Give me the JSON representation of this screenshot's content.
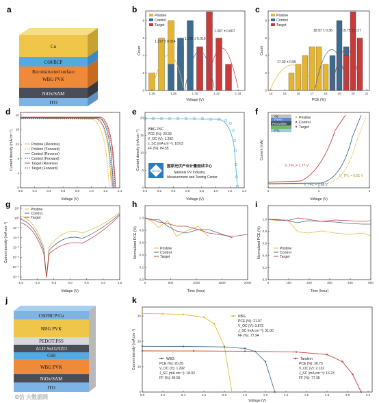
{
  "colors": {
    "pristine": "#E6B530",
    "control": "#3D6A8F",
    "target": "#C73B3B",
    "blue_curve": "#56B3DE",
    "ito": "#7EB3E6",
    "gold": "#F0C64A",
    "orange": "#F08A3B",
    "dark": "#4A4E58",
    "c60": "#56A9E0"
  },
  "panels": {
    "a": "a",
    "b": "b",
    "c": "c",
    "d": "d",
    "e": "e",
    "f": "f",
    "g": "g",
    "h": "h",
    "i": "i",
    "j": "j",
    "k": "k"
  },
  "panel_a": {
    "layers": [
      "Cu",
      "C60/BCP",
      "Reconstructed surface",
      "WBG PVK",
      "NiOx/SAM",
      "ITO"
    ]
  },
  "panel_j": {
    "layers": [
      "C60/BCP/Cu",
      "NBG PVK",
      "PEDOT:PSS",
      "ALD SnO2/IZO",
      "C60",
      "WBG PVK",
      "NiOx/SAM",
      "ITO"
    ],
    "watermark": "©仿 大数据网"
  },
  "legend_main": [
    "Pristine",
    "Control",
    "Target"
  ],
  "panel_b": {
    "xlabel": "Voltage (V)",
    "ylabel": "Count",
    "ticks_x": [
      "1.26",
      "1.28",
      "1.30",
      "1.32",
      "1.34"
    ],
    "ticks_y": [
      "0",
      "2",
      "4",
      "6",
      "8"
    ],
    "annotations": [
      "1.227 ± 0.014",
      "1.278 ± 0.010",
      "1.307 ± 0.007"
    ]
  },
  "panel_c": {
    "xlabel": "PCE (%)",
    "ylabel": "Count",
    "ticks_x": [
      "14",
      "15",
      "16",
      "17",
      "18",
      "19",
      "20",
      "21"
    ],
    "ticks_y": [
      "0",
      "2",
      "4",
      "6",
      "8"
    ],
    "annotations": [
      "17.32 ± 0.55",
      "18.97 ± 0.36",
      "19.75 ± 0.37"
    ]
  },
  "panel_d": {
    "xlabel": "Voltage (V)",
    "ylabel": "Current density (mA cm⁻²)",
    "ticks_x": [
      "0.0",
      "0.2",
      "0.4",
      "0.6",
      "0.8",
      "1.0",
      "1.2",
      "1.4"
    ],
    "ticks_y": [
      "0",
      "4",
      "8",
      "12",
      "16",
      "20"
    ],
    "legend": [
      "Pristine (Reverse)",
      "Pristine (Forward)",
      "Control (Reverse)",
      "Control (Forward)",
      "Target (Reverse)",
      "Target (Forward)"
    ]
  },
  "panel_e": {
    "xlabel": "Voltage (V)",
    "ylabel": "Current density (mA cm⁻²)",
    "ticks_x": [
      "0.0",
      "0.2",
      "0.4",
      "0.6",
      "0.8",
      "1.0",
      "1.2",
      "1.4"
    ],
    "ticks_y": [
      "0",
      "5",
      "10",
      "15",
      "20"
    ],
    "cert_lines": [
      "WBG PSC",
      "PCE (%): 20.39",
      "V_OC (V): 1.292",
      "J_SC (mA cm⁻²): 18.03",
      "FF (%): 84.55"
    ],
    "logo_text": "NPVM",
    "org_cn": "国家光伏产业计量测试中心",
    "org_en": "National PV Industry",
    "org_en2": "Measurement and Testing Center"
  },
  "panel_f": {
    "xlabel": "Voltage (V)",
    "ylabel": "Current (mA)",
    "ticks_x": [
      "0",
      "1",
      "2"
    ],
    "stack": [
      "Ag",
      "PTAA",
      "Perovskite",
      "PTL",
      "ITO"
    ],
    "annotations": [
      "V_TFL = 1.77 V",
      "V_TFL = 0.81 V",
      "V_TFL = 0.88 V"
    ]
  },
  "panel_g": {
    "xlabel": "Voltage (V)",
    "ylabel": "Current density (mA cm⁻²)",
    "ticks_x": [
      "-1.5",
      "-1.0",
      "-0.5",
      "0.0",
      "0.5",
      "1.0",
      "1.5"
    ],
    "ticks_y": [
      "10¹",
      "10⁰",
      "10⁻¹",
      "10⁻²",
      "10⁻³",
      "10⁻⁴",
      "10⁻⁵",
      "10⁻⁶"
    ]
  },
  "panel_h": {
    "xlabel": "Time (hour)",
    "ylabel": "Normalized PCE (%)",
    "ticks_x": [
      "0",
      "500",
      "1000",
      "1500",
      "2000"
    ],
    "ticks_y": [
      "0.0",
      "0.2",
      "0.4",
      "0.6",
      "0.8",
      "1.0"
    ]
  },
  "panel_i": {
    "xlabel": "Time (hour)",
    "ylabel": "Normalized PCE (%)",
    "ticks_x": [
      "0",
      "100",
      "200",
      "300",
      "400",
      "500"
    ],
    "ticks_y": [
      "0.0",
      "0.2",
      "0.4",
      "0.6",
      "0.8",
      "1.0"
    ]
  },
  "panel_k": {
    "xlabel": "Voltage (V)",
    "ylabel": "Current density (mA cm⁻²)",
    "ticks_x": [
      "0.0",
      "0.2",
      "0.4",
      "0.6",
      "0.8",
      "1.0",
      "1.2",
      "1.4",
      "1.6",
      "1.8",
      "2.0",
      "2.2"
    ],
    "ticks_y": [
      "0",
      "10",
      "20",
      "30"
    ],
    "nbg_label": "NBG",
    "nbg_lines": [
      "PCE (%): 21.07",
      "V_OC (V): 0.873",
      "J_SC (mA cm⁻²): 31.00",
      "FF (%): 77.94"
    ],
    "wbg_label": "WBG",
    "wbg_lines": [
      "PCE (%): 20.39",
      "V_OC (V): 1.292",
      "J_SC (mA cm⁻²): 18.03",
      "FF (%): 84.55"
    ],
    "tandem_label": "Tandem",
    "tandem_lines": [
      "PCE (%): 26.75",
      "V_OC (V): 2.132",
      "J_SC (mA cm⁻²): 16.23",
      "FF (%): 77.35"
    ]
  },
  "chart_data": [
    {
      "panel": "b",
      "type": "bar",
      "xlabel": "Voltage (V)",
      "ylabel": "Count",
      "series": [
        {
          "name": "Pristine",
          "x": [
            1.25,
            1.26,
            1.27,
            1.28
          ],
          "values": [
            2,
            6,
            8,
            5
          ]
        },
        {
          "name": "Control",
          "x": [
            1.27,
            1.28,
            1.29,
            1.3
          ],
          "values": [
            3,
            6,
            8,
            4
          ]
        },
        {
          "name": "Target",
          "x": [
            1.3,
            1.31,
            1.32,
            1.33
          ],
          "values": [
            5,
            9,
            6,
            3
          ]
        }
      ]
    },
    {
      "panel": "c",
      "type": "bar",
      "xlabel": "PCE (%)",
      "ylabel": "Count",
      "series": [
        {
          "name": "Pristine",
          "x": [
            15.5,
            16,
            16.5,
            17,
            17.5,
            18
          ],
          "values": [
            2,
            3,
            4,
            5,
            5,
            3
          ]
        },
        {
          "name": "Control",
          "x": [
            18.5,
            19,
            19.5
          ],
          "values": [
            4,
            8,
            5
          ]
        },
        {
          "name": "Target",
          "x": [
            19.5,
            20,
            20.5
          ],
          "values": [
            4,
            9,
            6
          ]
        }
      ]
    },
    {
      "panel": "k",
      "type": "line",
      "xlabel": "Voltage (V)",
      "ylabel": "Current density (mA cm⁻²)",
      "series": [
        {
          "name": "NBG",
          "x": [
            0,
            0.2,
            0.4,
            0.6,
            0.7,
            0.8,
            0.873
          ],
          "y": [
            31,
            30.9,
            30.6,
            29.5,
            27,
            18,
            0
          ]
        },
        {
          "name": "WBG",
          "x": [
            0,
            0.4,
            0.8,
            1.0,
            1.1,
            1.2,
            1.292
          ],
          "y": [
            18.03,
            18,
            17.8,
            17.2,
            16,
            12,
            0
          ]
        },
        {
          "name": "Tandem",
          "x": [
            0,
            0.5,
            1.0,
            1.5,
            1.8,
            1.95,
            2.05,
            2.132
          ],
          "y": [
            16.23,
            16.2,
            16.1,
            15.8,
            14.8,
            12,
            7,
            0
          ]
        }
      ]
    }
  ]
}
